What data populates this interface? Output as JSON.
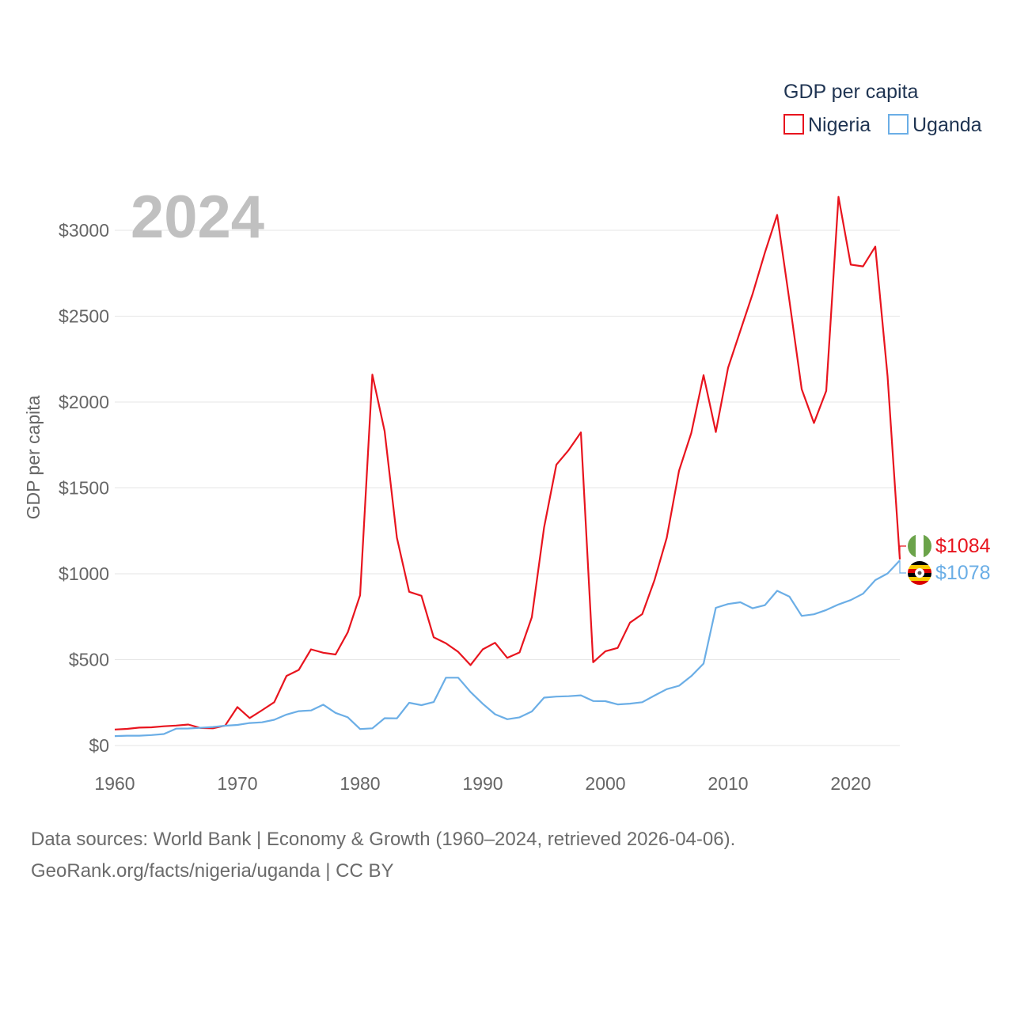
{
  "chart_data": {
    "type": "line",
    "legend_title": "GDP per capita",
    "ylabel": "GDP per capita",
    "year_display": "2024",
    "x": [
      1960,
      1961,
      1962,
      1963,
      1964,
      1965,
      1966,
      1967,
      1968,
      1969,
      1970,
      1971,
      1972,
      1973,
      1974,
      1975,
      1976,
      1977,
      1978,
      1979,
      1980,
      1981,
      1982,
      1983,
      1984,
      1985,
      1986,
      1987,
      1988,
      1989,
      1990,
      1991,
      1992,
      1993,
      1994,
      1995,
      1996,
      1997,
      1998,
      1999,
      2000,
      2001,
      2002,
      2003,
      2004,
      2005,
      2006,
      2007,
      2008,
      2009,
      2010,
      2011,
      2012,
      2013,
      2014,
      2015,
      2016,
      2017,
      2018,
      2019,
      2020,
      2021,
      2022,
      2023,
      2024
    ],
    "xlim": [
      1960,
      2024
    ],
    "ylim": [
      0,
      3250
    ],
    "x_ticks": [
      1960,
      1970,
      1980,
      1990,
      2000,
      2010,
      2020
    ],
    "x_tick_labels": [
      "1960",
      "1970",
      "1980",
      "1990",
      "2000",
      "2010",
      "2020"
    ],
    "y_ticks": [
      0,
      500,
      1000,
      1500,
      2000,
      2500,
      3000
    ],
    "y_tick_labels": [
      "$0",
      "$500",
      "$1000",
      "$1500",
      "$2000",
      "$2500",
      "$3000"
    ],
    "series": [
      {
        "name": "Nigeria",
        "color": "#e8141e",
        "end_label": "$1084",
        "flag": "nigeria",
        "values": [
          93,
          97,
          104,
          106,
          112,
          116,
          122,
          102,
          100,
          116,
          224,
          160,
          205,
          252,
          405,
          440,
          560,
          540,
          530,
          660,
          875,
          2160,
          1830,
          1210,
          895,
          872,
          630,
          595,
          545,
          468,
          560,
          598,
          510,
          542,
          747,
          1270,
          1635,
          1720,
          1823,
          485,
          549,
          568,
          715,
          765,
          963,
          1210,
          1600,
          1820,
          2156,
          1826,
          2200,
          2415,
          2630,
          2870,
          3090,
          2590,
          2075,
          1878,
          2065,
          3195,
          2800,
          2790,
          2905,
          2150,
          1084
        ]
      },
      {
        "name": "Uganda",
        "color": "#6baee6",
        "end_label": "$1078",
        "flag": "uganda",
        "values": [
          55,
          57,
          57,
          61,
          67,
          98,
          99,
          103,
          108,
          115,
          120,
          131,
          135,
          150,
          180,
          200,
          204,
          238,
          190,
          164,
          96,
          100,
          159,
          158,
          249,
          235,
          253,
          395,
          395,
          312,
          243,
          182,
          153,
          164,
          198,
          279,
          285,
          287,
          292,
          259,
          258,
          239,
          244,
          252,
          291,
          328,
          348,
          404,
          477,
          802,
          824,
          834,
          799,
          817,
          901,
          867,
          755,
          764,
          789,
          821,
          847,
          884,
          963,
          1002,
          1078
        ]
      }
    ]
  },
  "source": {
    "line1": "Data sources: World Bank | Economy & Growth (1960–2024, retrieved 2026-04-06).",
    "line2": "GeoRank.org/facts/nigeria/uganda | CC BY"
  }
}
